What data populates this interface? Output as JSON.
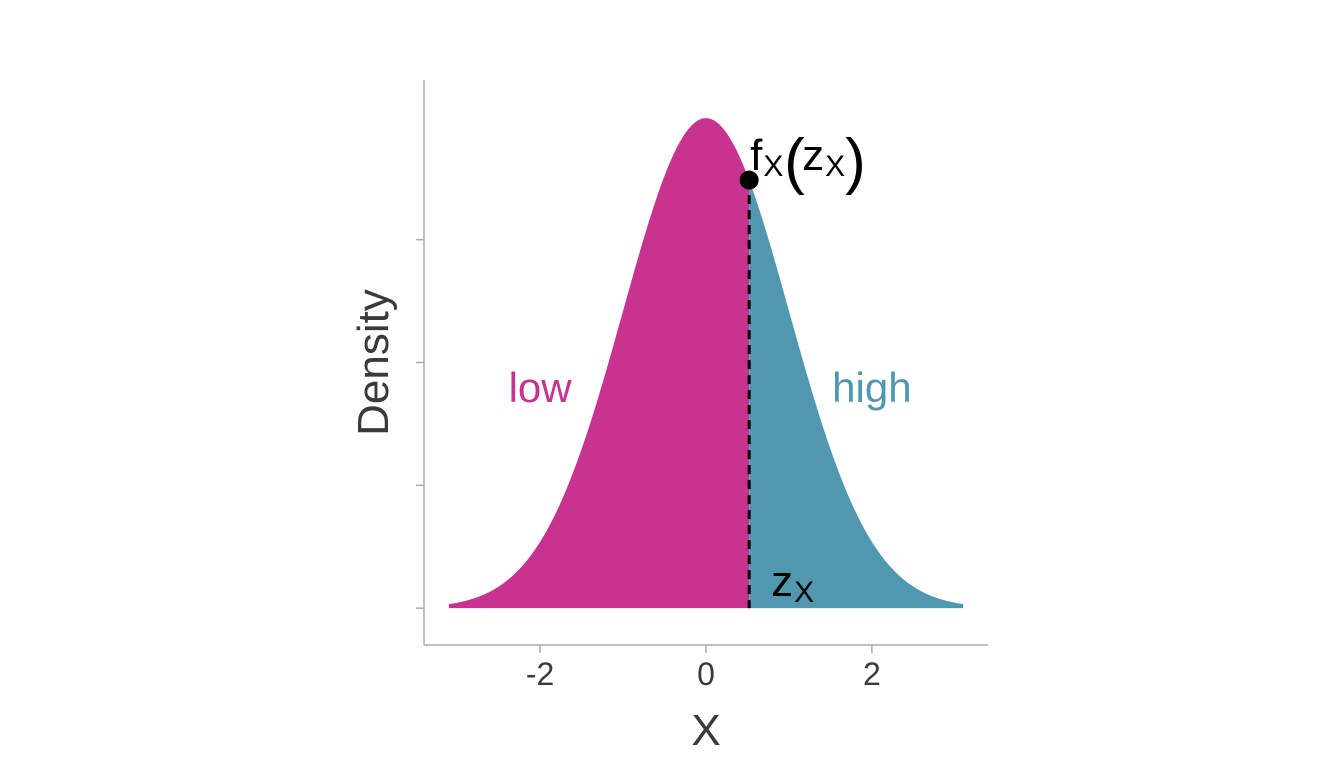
{
  "chart_data": {
    "type": "area",
    "title": "",
    "xlabel": "X",
    "ylabel": "Density",
    "distribution": "standard normal",
    "x_range": [
      -3.1,
      3.1
    ],
    "xlim": [
      -3.4,
      3.4
    ],
    "ylim": [
      -0.03,
      0.43
    ],
    "x_ticks": [
      -2,
      0,
      2
    ],
    "x_tick_labels": [
      "-2",
      "0",
      "2"
    ],
    "y_ticks": [
      0,
      0.1,
      0.2,
      0.3
    ],
    "y_tick_labels_shown": false,
    "grid": false,
    "threshold": {
      "x": 0.52,
      "label_main": "z",
      "label_sub": "X"
    },
    "point": {
      "x": 0.52,
      "label_main": "f",
      "label_sub": "X",
      "label_arg_main": "z",
      "label_arg_sub": "X"
    },
    "regions": [
      {
        "name": "low",
        "label": "low",
        "from": -3.1,
        "to": 0.52,
        "color": "#C8338F"
      },
      {
        "name": "high",
        "label": "high",
        "from": 0.52,
        "to": 3.1,
        "color": "#5097B0"
      }
    ],
    "colors": {
      "axis": "#AAAAAA",
      "text": "#3A3A3A",
      "marker": "#000000"
    }
  }
}
